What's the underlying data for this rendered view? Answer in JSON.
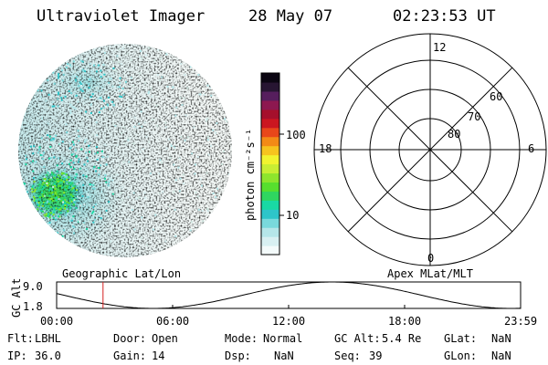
{
  "header": {
    "title": "Ultraviolet Imager",
    "date": "28 May 07",
    "time": "02:23:53 UT"
  },
  "colorbar": {
    "label": "photon cm⁻²s⁻¹",
    "ticks": [
      {
        "label": "100",
        "value": 100
      },
      {
        "label": "10",
        "value": 10
      }
    ],
    "colors": [
      "#f4fbfb",
      "#d8f0f2",
      "#b5e6e9",
      "#79d9dc",
      "#2ec5c9",
      "#19d9a4",
      "#2fd660",
      "#57df2e",
      "#8ee52d",
      "#c8ee33",
      "#f1f42f",
      "#f6c41e",
      "#f38a16",
      "#e8471a",
      "#cb1620",
      "#a5102c",
      "#8d1850",
      "#561e5d",
      "#271532",
      "#0b0612"
    ]
  },
  "polar_grid": {
    "mlt_labels": [
      {
        "label": "12",
        "mlt": 12
      },
      {
        "label": "18",
        "mlt": 18
      },
      {
        "label": "6",
        "mlt": 6
      },
      {
        "label": "0",
        "mlt": 0
      }
    ],
    "lat_labels": [
      {
        "label": "60",
        "lat": 60
      },
      {
        "label": "70",
        "lat": 70
      },
      {
        "label": "80",
        "lat": 80
      }
    ]
  },
  "orbit_panel": {
    "left_label": "Geographic Lat/Lon",
    "right_label": "Apex MLat/MLT",
    "y_axis_label": "GC Alt",
    "y_ticks": [
      {
        "label": "9.0",
        "value": 9.0
      },
      {
        "label": "1.8",
        "value": 1.8
      }
    ],
    "x_ticks": [
      "00:00",
      "06:00",
      "12:00",
      "18:00",
      "23:59"
    ],
    "current_time_hours": 2.4
  },
  "info": {
    "flt": {
      "label": "Flt:",
      "value": "LBHL"
    },
    "door": {
      "label": "Door:",
      "value": "Open"
    },
    "mode": {
      "label": "Mode:",
      "value": "Normal"
    },
    "gc_alt": {
      "label": "GC Alt:",
      "value": "5.4 Re"
    },
    "glat": {
      "label": "GLat:",
      "value": "NaN"
    },
    "ip": {
      "label": "IP:",
      "value": "36.0"
    },
    "gain": {
      "label": "Gain:",
      "value": "14"
    },
    "dsp": {
      "label": "Dsp:",
      "value": "NaN"
    },
    "seq": {
      "label": "Seq:",
      "value": "39"
    },
    "glon": {
      "label": "GLon:",
      "value": "NaN"
    }
  }
}
